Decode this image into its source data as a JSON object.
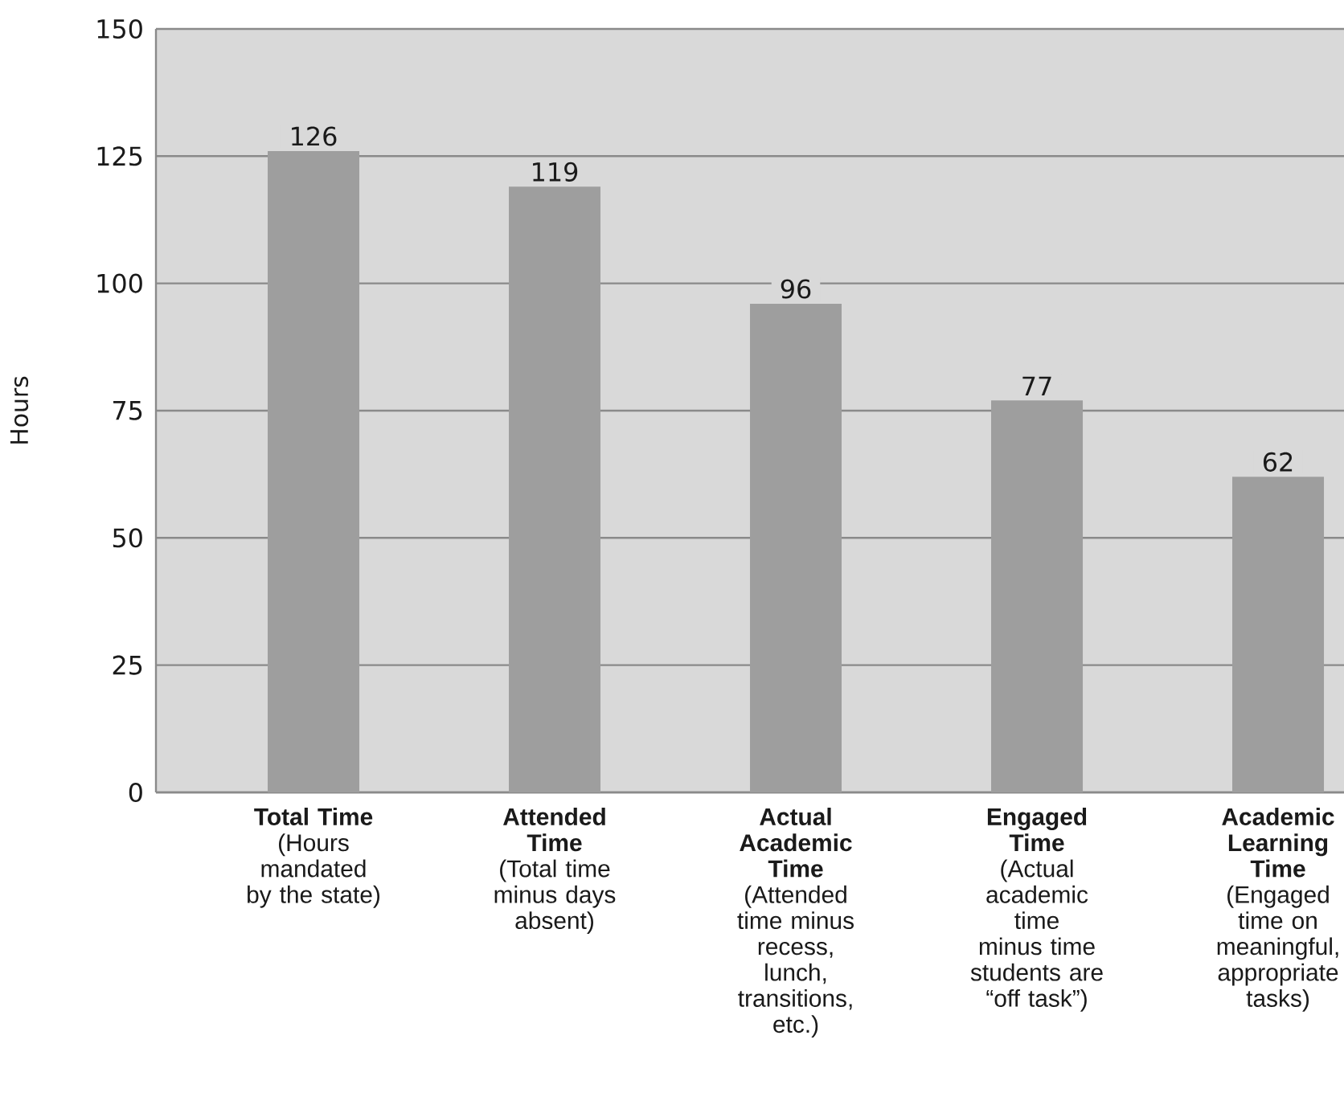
{
  "chart_data": {
    "type": "bar",
    "ylabel": "Hours",
    "categories": [
      "**Total Time** (Hours mandated by the state)",
      "**Attended Time** (Total time minus days absent)",
      "**Actual Academic Time** (Attended time minus recess, lunch, transitions, etc.)",
      "**Engaged Time** (Actual academic time minus time students are “off task”)",
      "**Academic Learning Time** (Engaged time on meaningful, appropriate tasks)"
    ],
    "values": [
      126,
      119,
      96,
      77,
      62
    ],
    "color": "#9e9e9e",
    "ylim": [
      0,
      150
    ],
    "yticks": [
      0,
      25,
      50,
      75,
      100,
      125,
      150
    ],
    "grid": "y",
    "data_labels": true
  }
}
